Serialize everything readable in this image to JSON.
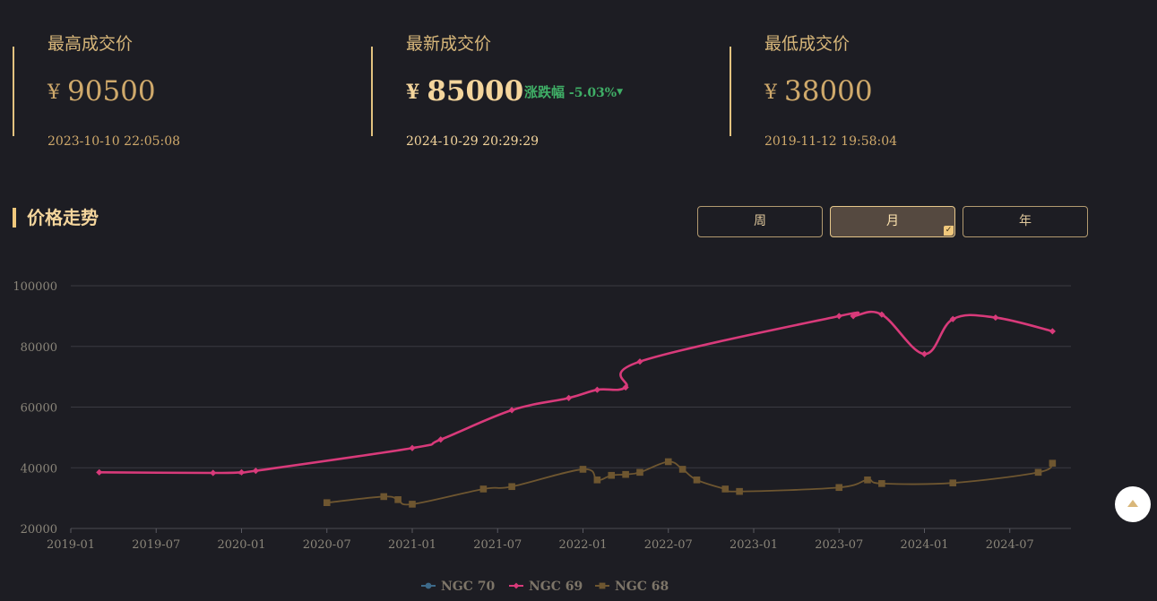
{
  "stats": {
    "highest": {
      "label": "最高成交价",
      "currency": "¥",
      "price": "90500",
      "time": "2023-10-10 22:05:08"
    },
    "latest": {
      "label": "最新成交价",
      "currency": "¥",
      "price": "85000",
      "change_label": "涨跌幅",
      "change_value": "-5.03%",
      "change_arrow": "▼",
      "time": "2024-10-29 20:29:29"
    },
    "lowest": {
      "label": "最低成交价",
      "currency": "¥",
      "price": "38000",
      "time": "2019-11-12 19:58:04"
    }
  },
  "section_title": "价格走势",
  "period_tabs": [
    {
      "label": "周",
      "active": false
    },
    {
      "label": "月",
      "active": true
    },
    {
      "label": "年",
      "active": false
    }
  ],
  "chart_data": {
    "type": "line",
    "title": "",
    "xlabel": "",
    "ylabel": "",
    "ylim": [
      20000,
      100000
    ],
    "yticks": [
      20000,
      40000,
      60000,
      80000,
      100000
    ],
    "xticks": [
      "2019-01",
      "2019-07",
      "2020-01",
      "2020-07",
      "2021-01",
      "2021-07",
      "2022-01",
      "2022-07",
      "2023-01",
      "2023-07",
      "2024-01",
      "2024-07"
    ],
    "grid": true,
    "legend_position": "bottom-center",
    "series": [
      {
        "name": "NGC 70",
        "color": "#3d6a8a",
        "marker": "circle",
        "points": []
      },
      {
        "name": "NGC 69",
        "color": "#d83a7a",
        "marker": "diamond",
        "points": [
          [
            "2019-03",
            38500
          ],
          [
            "2019-11",
            38300
          ],
          [
            "2020-01",
            38500
          ],
          [
            "2020-02",
            39000
          ],
          [
            "2021-01",
            46500
          ],
          [
            "2021-03",
            49300
          ],
          [
            "2021-08",
            59000
          ],
          [
            "2021-12",
            63000
          ],
          [
            "2022-02",
            65700
          ],
          [
            "2022-04",
            66500
          ],
          [
            "2022-05",
            75000
          ],
          [
            "2023-07",
            90000
          ],
          [
            "2023-08",
            90000
          ],
          [
            "2023-10",
            90500
          ],
          [
            "2024-01",
            77500
          ],
          [
            "2024-03",
            89000
          ],
          [
            "2024-06",
            89500
          ],
          [
            "2024-10",
            85000
          ]
        ]
      },
      {
        "name": "NGC 68",
        "color": "#6e5630",
        "marker": "square",
        "points": [
          [
            "2020-07",
            28500
          ],
          [
            "2020-11",
            30500
          ],
          [
            "2020-12",
            29500
          ],
          [
            "2021-01",
            28000
          ],
          [
            "2021-06",
            33000
          ],
          [
            "2021-08",
            33800
          ],
          [
            "2022-01",
            39500
          ],
          [
            "2022-02",
            36000
          ],
          [
            "2022-03",
            37500
          ],
          [
            "2022-04",
            37800
          ],
          [
            "2022-05",
            38500
          ],
          [
            "2022-07",
            42000
          ],
          [
            "2022-08",
            39500
          ],
          [
            "2022-09",
            36000
          ],
          [
            "2022-11",
            33000
          ],
          [
            "2022-12",
            32200
          ],
          [
            "2023-07",
            33500
          ],
          [
            "2023-09",
            36000
          ],
          [
            "2023-10",
            34800
          ],
          [
            "2024-03",
            35000
          ],
          [
            "2024-09",
            38500
          ],
          [
            "2024-10",
            41500
          ]
        ]
      }
    ]
  }
}
